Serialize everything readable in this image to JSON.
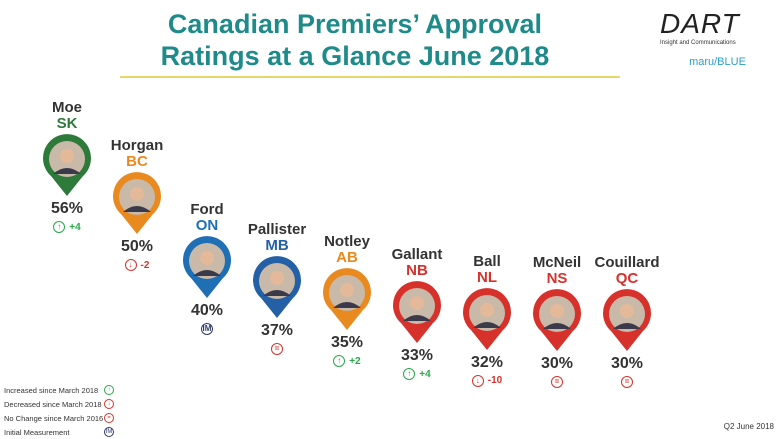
{
  "title_line1": "Canadian Premiers’ Approval",
  "title_line2": "Ratings at a Glance June 2018",
  "logo": {
    "brand": "DART",
    "tagline": "Insight and Communications",
    "partner": "maru/BLUE"
  },
  "colors": {
    "up": "#2aa84a",
    "down": "#d6322b",
    "neutral": "#2d3a6a",
    "title": "#1f8a8a"
  },
  "chart_data": {
    "type": "bar",
    "title": "Canadian Premiers’ Approval Ratings at a Glance June 2018",
    "categories": [
      "SK",
      "BC",
      "ON",
      "MB",
      "AB",
      "NB",
      "NL",
      "NS",
      "QC"
    ],
    "names": [
      "Moe",
      "Horgan",
      "Ford",
      "Pallister",
      "Notley",
      "Gallant",
      "Ball",
      "McNeil",
      "Couillard"
    ],
    "values": [
      56,
      50,
      40,
      37,
      35,
      33,
      32,
      30,
      30
    ],
    "labels": [
      "56%",
      "50%",
      "40%",
      "37%",
      "35%",
      "33%",
      "32%",
      "30%",
      "30%"
    ],
    "change_type": [
      "up",
      "down",
      "initial",
      "same",
      "up",
      "up",
      "down",
      "same",
      "same"
    ],
    "change_label": [
      "+4",
      "-2",
      "",
      "",
      "+2",
      "+4",
      "-10",
      "",
      ""
    ],
    "prov_colors": [
      "#2d7a3a",
      "#e88a20",
      "#1f6fb5",
      "#2460a6",
      "#e88a20",
      "#d6322b",
      "#d6322b",
      "#d6322b",
      "#d6322b"
    ]
  },
  "legend": [
    {
      "text": "Increased since March 2018",
      "type": "up"
    },
    {
      "text": "Decreased since March 2018",
      "type": "down"
    },
    {
      "text": "No Change since March 2016",
      "type": "same"
    },
    {
      "text": "Initial Measurement",
      "type": "initial"
    }
  ],
  "footer": "Q2 June 2018"
}
